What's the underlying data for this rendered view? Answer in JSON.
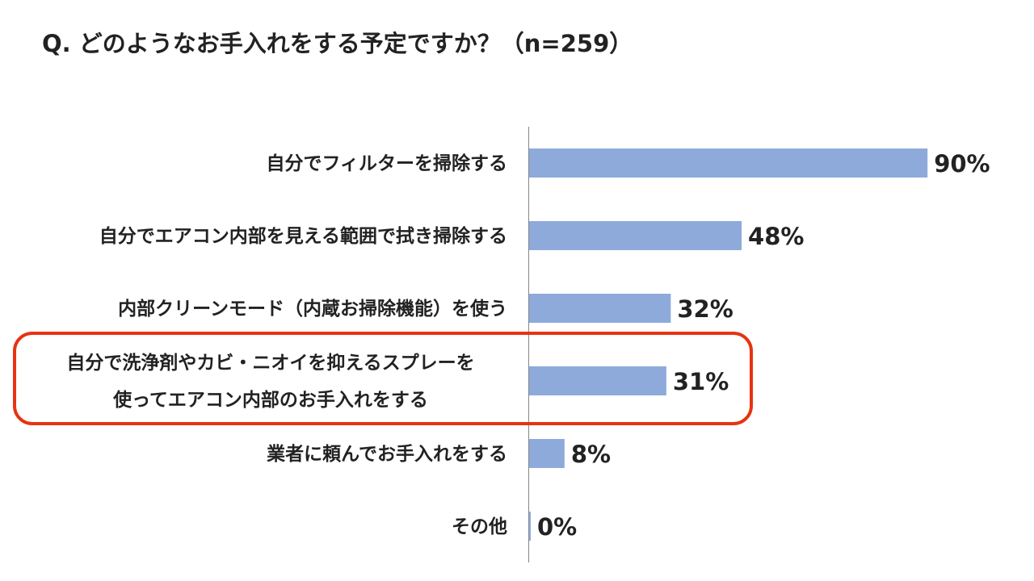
{
  "title": "Q. どのようなお手入れをする予定ですか？（n=259）",
  "chart_data": {
    "type": "bar",
    "orientation": "horizontal",
    "title": "Q. どのようなお手入れをする予定ですか？（n=259）",
    "xlabel": "",
    "ylabel": "",
    "xlim": [
      0,
      100
    ],
    "unit": "%",
    "grid": false,
    "legend": "none",
    "categories": [
      "自分でフィルターを掃除する",
      "自分でエアコン内部を見える範囲で拭き掃除する",
      "内部クリーンモード（内蔵お掃除機能）を使う",
      "自分で洗浄剤やカビ・ニオイを抑えるスプレーを\n使ってエアコン内部のお手入れをする",
      "業者に頼んでお手入れをする",
      "その他"
    ],
    "values": [
      90,
      48,
      32,
      31,
      8,
      0
    ],
    "value_labels": [
      "90%",
      "48%",
      "32%",
      "31%",
      "8%",
      "0%"
    ],
    "highlighted_index": 3
  },
  "colors": {
    "bar": "#8eaadb",
    "axis": "#888888",
    "highlight_border": "#e63312",
    "text": "#222222"
  }
}
